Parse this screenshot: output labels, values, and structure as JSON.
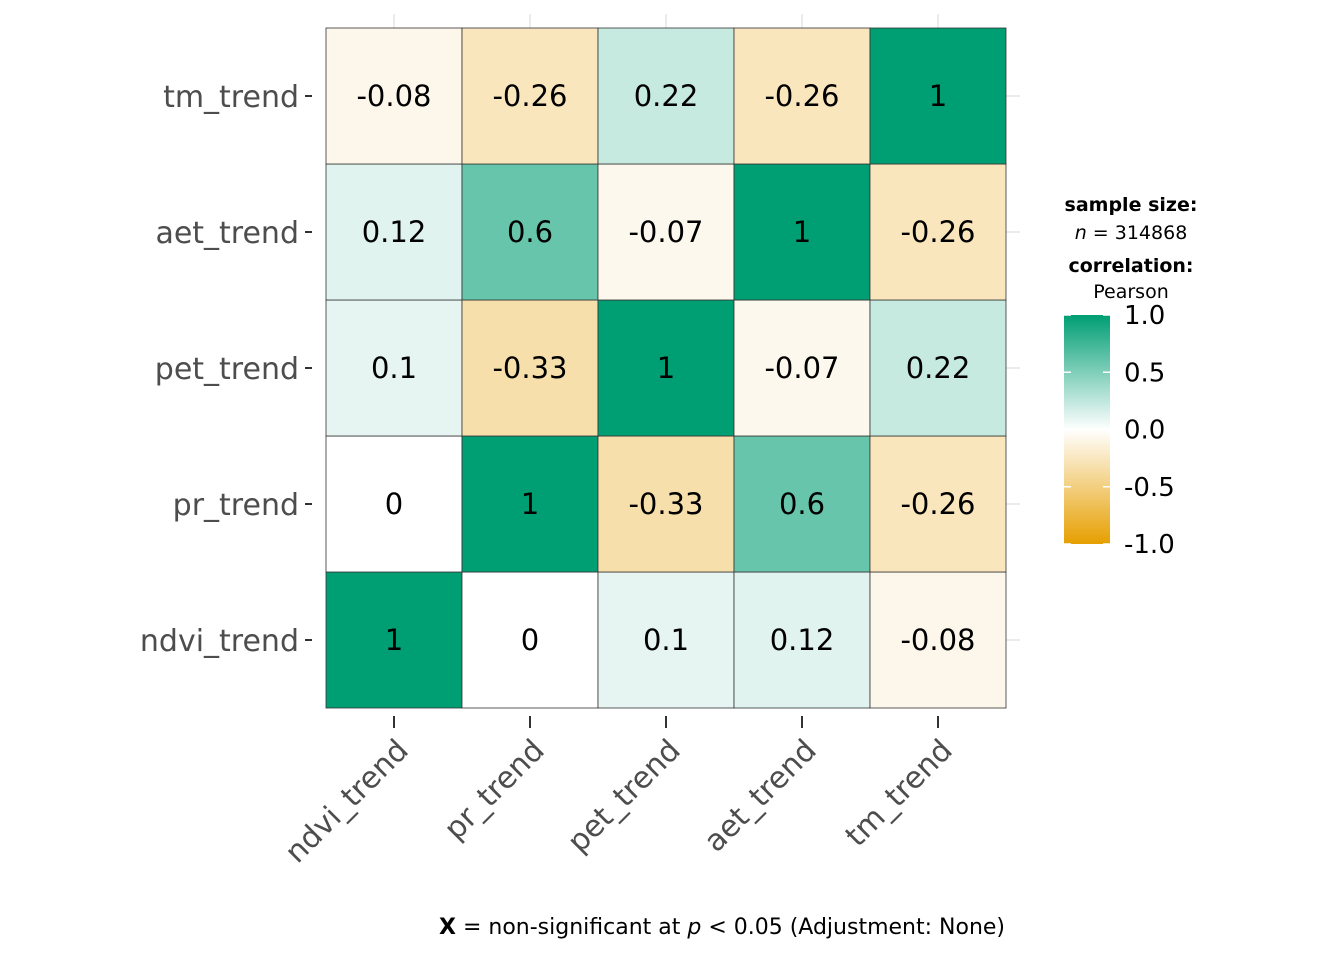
{
  "chart_data": {
    "type": "heatmap",
    "variables": [
      "ndvi_trend",
      "pr_trend",
      "pet_trend",
      "aet_trend",
      "tm_trend"
    ],
    "x_labels": [
      "ndvi_trend",
      "pr_trend",
      "pet_trend",
      "aet_trend",
      "tm_trend"
    ],
    "y_labels": [
      "ndvi_trend",
      "pr_trend",
      "pet_trend",
      "aet_trend",
      "tm_trend"
    ],
    "matrix": [
      [
        1,
        0,
        0.1,
        0.12,
        -0.08
      ],
      [
        0,
        1,
        -0.33,
        0.6,
        -0.26
      ],
      [
        0.1,
        -0.33,
        1,
        -0.07,
        0.22
      ],
      [
        0.12,
        0.6,
        -0.07,
        1,
        -0.26
      ],
      [
        -0.08,
        -0.26,
        0.22,
        -0.26,
        1
      ]
    ],
    "value_range": [
      -1.0,
      1.0
    ],
    "colors": {
      "high": "#009E73",
      "mid": "#FFFFFF",
      "low": "#E69F00"
    },
    "legend": {
      "sample_size_title": "sample size:",
      "sample_n_symbol": "n",
      "sample_n_text": " = 314868",
      "correlation_title": "correlation:",
      "correlation_method": "Pearson",
      "ticks": [
        1.0,
        0.5,
        0.0,
        -0.5,
        -1.0
      ],
      "tick_labels": [
        "1.0",
        "0.5",
        "0.0",
        "-0.5",
        "-1.0"
      ],
      "placement": "right"
    },
    "caption": {
      "bold": "X",
      "part1": " = non-significant at ",
      "italic": "p",
      "part2": " < 0.05 (Adjustment: None)"
    },
    "grid": true
  }
}
